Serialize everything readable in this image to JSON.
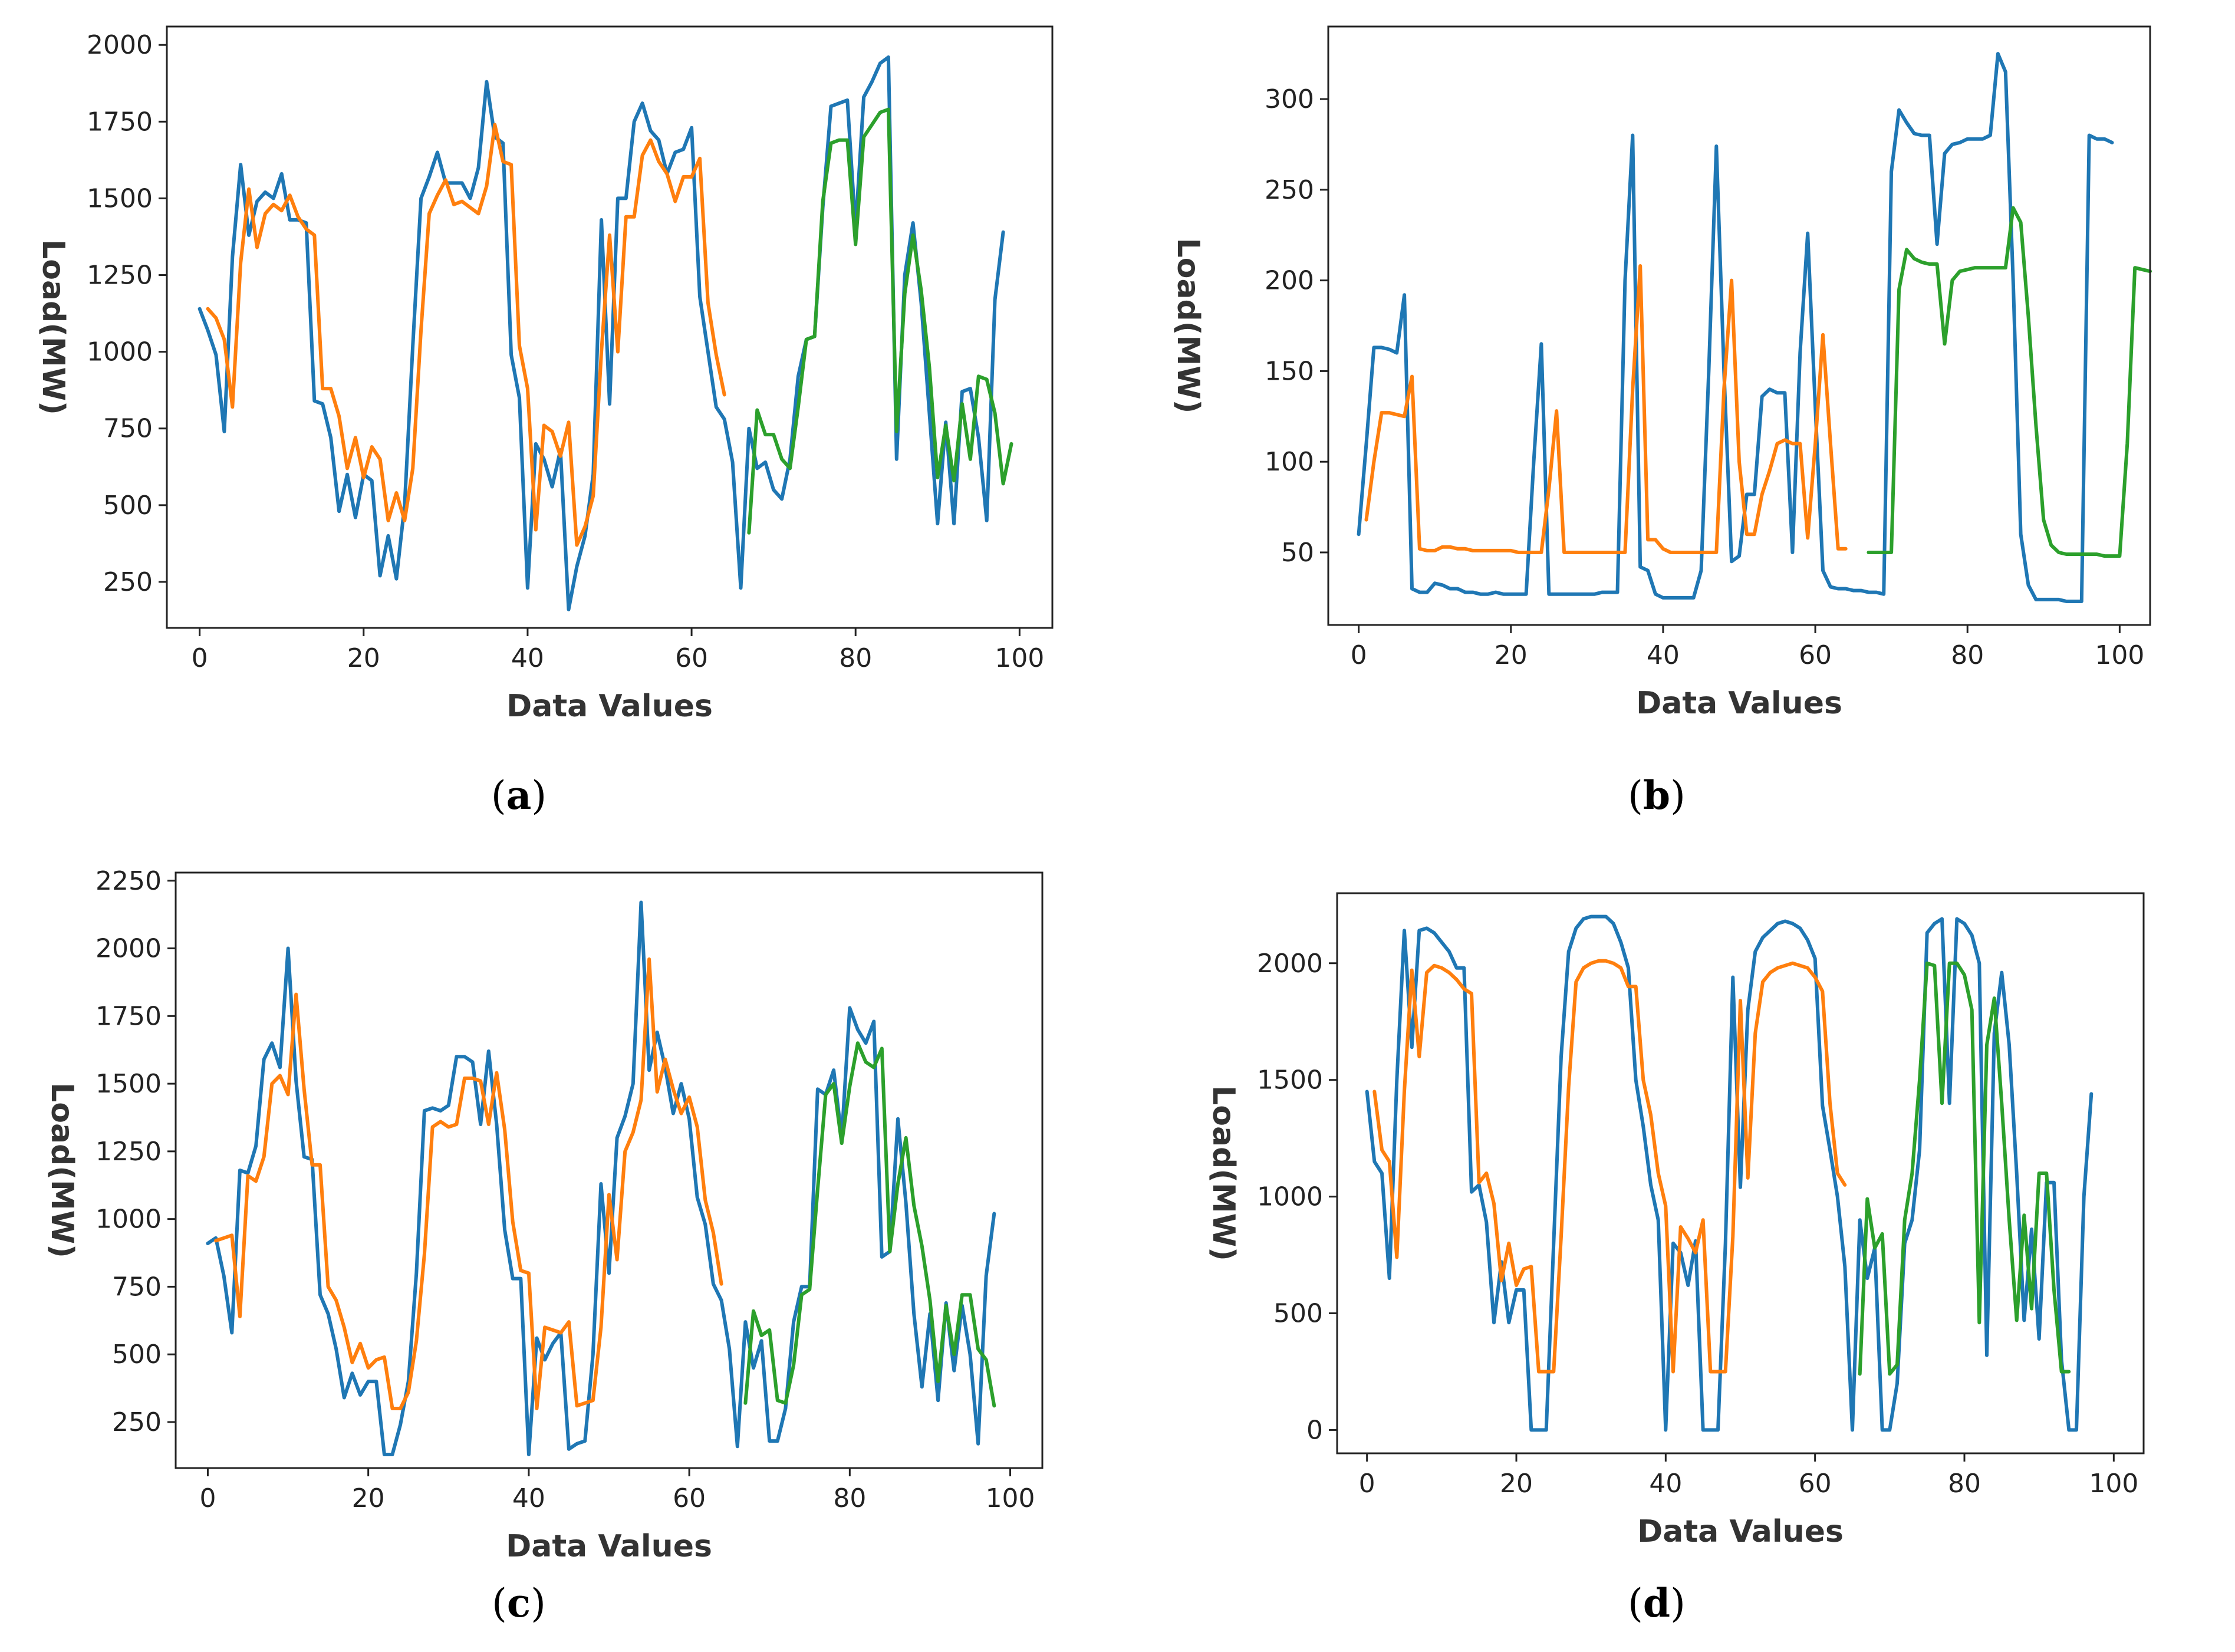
{
  "figure": {
    "captions": [
      "a",
      "b",
      "c",
      "d"
    ]
  },
  "colors": {
    "series1": "#1f77b4",
    "series2": "#ff7f0e",
    "series3": "#2ca02c"
  },
  "chart_data": [
    {
      "type": "line",
      "panel": "a",
      "xlabel": "Data Values",
      "ylabel": "Load(MW)",
      "xlim": [
        -4,
        104
      ],
      "ylim": [
        100,
        2060
      ],
      "xticks": [
        0,
        20,
        40,
        60,
        80,
        100
      ],
      "yticks": [
        250,
        500,
        750,
        1000,
        1250,
        1500,
        1750,
        2000
      ],
      "series": [
        {
          "name": "series1",
          "color": "#1f77b4",
          "x_start": 0,
          "values": [
            1140,
            1070,
            990,
            740,
            1310,
            1610,
            1380,
            1490,
            1520,
            1500,
            1580,
            1430,
            1430,
            1420,
            840,
            830,
            720,
            480,
            600,
            460,
            600,
            580,
            270,
            400,
            260,
            500,
            1020,
            1500,
            1570,
            1650,
            1550,
            1550,
            1550,
            1500,
            1600,
            1880,
            1700,
            1680,
            990,
            850,
            230,
            700,
            650,
            560,
            680,
            160,
            300,
            400,
            600,
            1430,
            830,
            1500,
            1500,
            1750,
            1810,
            1720,
            1690,
            1580,
            1650,
            1660,
            1730,
            1180,
            1000,
            820,
            780,
            640,
            230,
            750,
            620,
            640,
            550,
            520,
            650,
            920,
            1040,
            1050,
            1470,
            1800,
            1810,
            1820,
            1400,
            1830,
            1880,
            1940,
            1960,
            650,
            1250,
            1420,
            1160,
            800,
            440,
            770,
            440,
            870,
            880,
            720,
            450,
            1170,
            1390
          ]
        },
        {
          "name": "series2",
          "color": "#ff7f0e",
          "x_start": 1,
          "values": [
            1140,
            1110,
            1040,
            820,
            1290,
            1530,
            1340,
            1450,
            1480,
            1460,
            1510,
            1440,
            1400,
            1380,
            880,
            880,
            790,
            620,
            720,
            590,
            690,
            650,
            450,
            540,
            450,
            620,
            1070,
            1450,
            1510,
            1560,
            1480,
            1490,
            1470,
            1450,
            1540,
            1740,
            1620,
            1610,
            1020,
            880,
            420,
            760,
            740,
            660,
            770,
            370,
            430,
            530,
            1000,
            1380,
            1000,
            1440,
            1440,
            1640,
            1690,
            1620,
            1580,
            1490,
            1570,
            1570,
            1630,
            1160,
            990,
            860
          ]
        },
        {
          "name": "series3",
          "color": "#2ca02c",
          "x_start": 67,
          "values": [
            410,
            810,
            730,
            730,
            650,
            620,
            820,
            1040,
            1050,
            1490,
            1680,
            1690,
            1690,
            1350,
            1700,
            1740,
            1780,
            1790,
            740,
            1190,
            1380,
            1200,
            950,
            590,
            760,
            580,
            830,
            650,
            920,
            910,
            800,
            570,
            700
          ]
        }
      ]
    },
    {
      "type": "line",
      "panel": "b",
      "xlabel": "Data Values",
      "ylabel": "Load(MW)",
      "xlim": [
        -4,
        104
      ],
      "ylim": [
        10,
        340
      ],
      "xticks": [
        0,
        20,
        40,
        60,
        80,
        100
      ],
      "yticks": [
        50,
        100,
        150,
        200,
        250,
        300
      ],
      "series": [
        {
          "name": "series1",
          "color": "#1f77b4",
          "x_start": 0,
          "values": [
            60,
            110,
            163,
            163,
            162,
            160,
            192,
            30,
            28,
            28,
            33,
            32,
            30,
            30,
            28,
            28,
            27,
            27,
            28,
            27,
            27,
            27,
            27,
            100,
            165,
            27,
            27,
            27,
            27,
            27,
            27,
            27,
            28,
            28,
            28,
            200,
            280,
            42,
            40,
            27,
            25,
            25,
            25,
            25,
            25,
            40,
            150,
            274,
            150,
            45,
            48,
            82,
            82,
            136,
            140,
            138,
            138,
            50,
            160,
            226,
            130,
            40,
            31,
            30,
            30,
            29,
            29,
            28,
            28,
            27,
            260,
            294,
            287,
            281,
            280,
            280,
            220,
            270,
            275,
            276,
            278,
            278,
            278,
            280,
            325,
            315,
            200,
            60,
            32,
            24,
            24,
            24,
            24,
            23,
            23,
            23,
            280,
            278,
            278,
            276
          ]
        },
        {
          "name": "series2",
          "color": "#ff7f0e",
          "x_start": 1,
          "values": [
            68,
            100,
            127,
            127,
            126,
            125,
            147,
            52,
            51,
            51,
            53,
            53,
            52,
            52,
            51,
            51,
            51,
            51,
            51,
            51,
            50,
            50,
            50,
            50,
            85,
            128,
            50,
            50,
            50,
            50,
            50,
            50,
            50,
            50,
            50,
            140,
            208,
            57,
            57,
            52,
            50,
            50,
            50,
            50,
            50,
            50,
            50,
            140,
            200,
            100,
            60,
            60,
            82,
            95,
            110,
            112,
            110,
            110,
            58,
            110,
            170,
            110,
            52,
            52
          ]
        },
        {
          "name": "series3",
          "color": "#2ca02c",
          "x_start": 67,
          "values": [
            50,
            50,
            50,
            50,
            195,
            217,
            212,
            210,
            209,
            209,
            165,
            200,
            205,
            206,
            207,
            207,
            207,
            207,
            207,
            240,
            232,
            180,
            120,
            68,
            54,
            50,
            49,
            49,
            49,
            49,
            49,
            48,
            48,
            48,
            110,
            207,
            206,
            205
          ]
        }
      ]
    },
    {
      "type": "line",
      "panel": "c",
      "xlabel": "Data Values",
      "ylabel": "Load(MW)",
      "xlim": [
        -4,
        104
      ],
      "ylim": [
        80,
        2280
      ],
      "xticks": [
        0,
        20,
        40,
        60,
        80,
        100
      ],
      "yticks": [
        250,
        500,
        750,
        1000,
        1250,
        1500,
        1750,
        2000,
        2250
      ],
      "series": [
        {
          "name": "series1",
          "color": "#1f77b4",
          "x_start": 0,
          "values": [
            910,
            930,
            790,
            580,
            1180,
            1170,
            1270,
            1590,
            1650,
            1560,
            2000,
            1510,
            1230,
            1220,
            720,
            650,
            520,
            340,
            430,
            350,
            400,
            400,
            130,
            130,
            240,
            400,
            800,
            1400,
            1410,
            1400,
            1420,
            1600,
            1600,
            1580,
            1350,
            1620,
            1350,
            960,
            780,
            780,
            130,
            560,
            480,
            540,
            580,
            150,
            170,
            180,
            500,
            1130,
            800,
            1300,
            1380,
            1500,
            2170,
            1550,
            1690,
            1560,
            1390,
            1500,
            1370,
            1080,
            980,
            760,
            700,
            520,
            160,
            620,
            450,
            550,
            180,
            180,
            300,
            620,
            750,
            750,
            1480,
            1460,
            1550,
            1300,
            1780,
            1700,
            1650,
            1730,
            860,
            880,
            1370,
            1060,
            650,
            380,
            650,
            330,
            690,
            440,
            680,
            500,
            170,
            790,
            1020
          ]
        },
        {
          "name": "series2",
          "color": "#ff7f0e",
          "x_start": 1,
          "values": [
            920,
            930,
            940,
            640,
            1160,
            1140,
            1230,
            1500,
            1530,
            1460,
            1830,
            1480,
            1200,
            1200,
            750,
            700,
            600,
            470,
            540,
            450,
            480,
            490,
            300,
            300,
            360,
            550,
            870,
            1340,
            1360,
            1340,
            1350,
            1520,
            1520,
            1510,
            1350,
            1540,
            1330,
            990,
            810,
            800,
            300,
            600,
            590,
            580,
            620,
            310,
            320,
            330,
            600,
            1090,
            850,
            1250,
            1320,
            1440,
            1960,
            1470,
            1590,
            1480,
            1390,
            1450,
            1340,
            1070,
            950,
            760
          ]
        },
        {
          "name": "series3",
          "color": "#2ca02c",
          "x_start": 67,
          "values": [
            320,
            660,
            570,
            590,
            330,
            320,
            460,
            720,
            740,
            1110,
            1460,
            1500,
            1280,
            1490,
            1650,
            1580,
            1560,
            1630,
            880,
            1130,
            1300,
            1050,
            900,
            700,
            400,
            680,
            500,
            720,
            720,
            520,
            480,
            310
          ]
        }
      ]
    },
    {
      "type": "line",
      "panel": "d",
      "xlabel": "Data Values",
      "ylabel": "Load(MW)",
      "xlim": [
        -4,
        104
      ],
      "ylim": [
        -100,
        2300
      ],
      "xticks": [
        0,
        20,
        40,
        60,
        80,
        100
      ],
      "yticks": [
        0,
        500,
        1000,
        1500,
        2000
      ],
      "series": [
        {
          "name": "series1",
          "color": "#1f77b4",
          "x_start": 0,
          "values": [
            1450,
            1150,
            1100,
            650,
            1500,
            2140,
            1640,
            2140,
            2150,
            2130,
            2090,
            2050,
            1980,
            1980,
            1020,
            1050,
            890,
            460,
            720,
            460,
            600,
            600,
            0,
            0,
            0,
            800,
            1600,
            2050,
            2150,
            2190,
            2200,
            2200,
            2200,
            2170,
            2090,
            1980,
            1500,
            1300,
            1050,
            900,
            0,
            800,
            760,
            620,
            810,
            0,
            0,
            0,
            800,
            1940,
            1040,
            1800,
            2050,
            2110,
            2140,
            2170,
            2180,
            2170,
            2150,
            2100,
            2020,
            1390,
            1200,
            1000,
            700,
            0,
            900,
            650,
            780,
            0,
            0,
            200,
            800,
            900,
            1200,
            2130,
            2170,
            2190,
            1400,
            2190,
            2170,
            2120,
            2000,
            320,
            1700,
            1960,
            1650,
            1100,
            470,
            860,
            390,
            1060,
            1060,
            300,
            0,
            0,
            1000,
            1440
          ]
        },
        {
          "name": "series2",
          "color": "#ff7f0e",
          "x_start": 1,
          "values": [
            1450,
            1200,
            1150,
            740,
            1450,
            1970,
            1600,
            1960,
            1990,
            1980,
            1960,
            1930,
            1890,
            1870,
            1060,
            1100,
            970,
            640,
            800,
            620,
            690,
            700,
            250,
            250,
            250,
            830,
            1470,
            1920,
            1980,
            2000,
            2010,
            2010,
            2000,
            1980,
            1900,
            1900,
            1500,
            1350,
            1100,
            960,
            250,
            870,
            820,
            760,
            900,
            250,
            250,
            250,
            830,
            1840,
            1080,
            1700,
            1920,
            1960,
            1980,
            1990,
            2000,
            1990,
            1980,
            1940,
            1880,
            1400,
            1100,
            1050
          ]
        },
        {
          "name": "series3",
          "color": "#2ca02c",
          "x_start": 66,
          "values": [
            240,
            990,
            780,
            840,
            240,
            280,
            900,
            1100,
            1500,
            2000,
            1990,
            1400,
            2000,
            2000,
            1950,
            1800,
            460,
            1650,
            1850,
            1400,
            900,
            470,
            920,
            520,
            1100,
            1100,
            600,
            250,
            250
          ]
        }
      ]
    }
  ]
}
